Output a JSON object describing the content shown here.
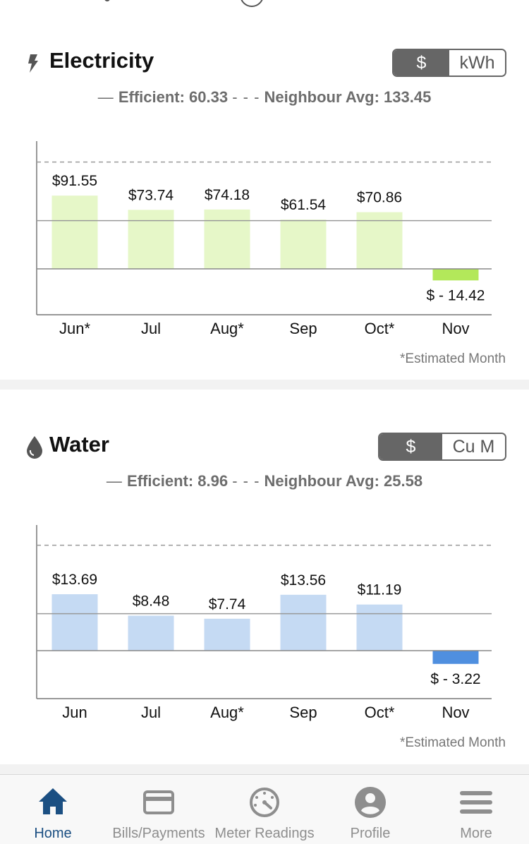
{
  "electricity": {
    "title": "Electricity",
    "icon": "lightning-icon",
    "toggle": [
      "$",
      "kWh"
    ],
    "toggle_active": 0,
    "legend": {
      "efficient_symbol": "—",
      "efficient": "Efficient: 60.33",
      "neighbour_symbol": "- - -",
      "neighbour": "Neighbour Avg: 133.45"
    },
    "note": "*Estimated Month",
    "chart_data": {
      "type": "bar",
      "categories": [
        "Jun*",
        "Jul",
        "Aug*",
        "Sep",
        "Oct*",
        "Nov"
      ],
      "values": [
        91.55,
        73.74,
        74.18,
        61.54,
        70.86,
        -14.42
      ],
      "data_labels": [
        "$91.55",
        "$73.74",
        "$74.18",
        "$61.54",
        "$70.86",
        "$ - 14.42"
      ],
      "reference_lines": {
        "efficient": 60.33,
        "neighbour_avg": 133.45
      },
      "colors": {
        "bar": "#e6f7c8",
        "negative_bar": "#b3e85a"
      }
    }
  },
  "water": {
    "title": "Water",
    "icon": "water-drop-icon",
    "toggle": [
      "$",
      "Cu M"
    ],
    "toggle_active": 0,
    "legend": {
      "efficient_symbol": "—",
      "efficient": "Efficient: 8.96",
      "neighbour_symbol": "- - -",
      "neighbour": "Neighbour Avg: 25.58"
    },
    "note": "*Estimated Month",
    "chart_data": {
      "type": "bar",
      "categories": [
        "Jun",
        "Jul",
        "Aug*",
        "Sep",
        "Oct*",
        "Nov"
      ],
      "values": [
        13.69,
        8.48,
        7.74,
        13.56,
        11.19,
        -3.22
      ],
      "data_labels": [
        "$13.69",
        "$8.48",
        "$7.74",
        "$13.56",
        "$11.19",
        "$ - 3.22"
      ],
      "reference_lines": {
        "efficient": 8.96,
        "neighbour_avg": 25.58
      },
      "colors": {
        "bar": "#c5daf3",
        "negative_bar": "#4f8fdf"
      }
    }
  },
  "nav": {
    "items": [
      {
        "label": "Home",
        "icon": "home-icon",
        "active": true
      },
      {
        "label": "Bills/Payments",
        "icon": "credit-card-icon",
        "active": false
      },
      {
        "label": "Meter Readings",
        "icon": "meter-gauge-icon",
        "active": false
      },
      {
        "label": "Profile",
        "icon": "user-profile-icon",
        "active": false
      },
      {
        "label": "More",
        "icon": "menu-lines-icon",
        "active": false
      }
    ],
    "colors": {
      "active": "#1b4f82",
      "inactive": "#8e8e8e"
    }
  }
}
